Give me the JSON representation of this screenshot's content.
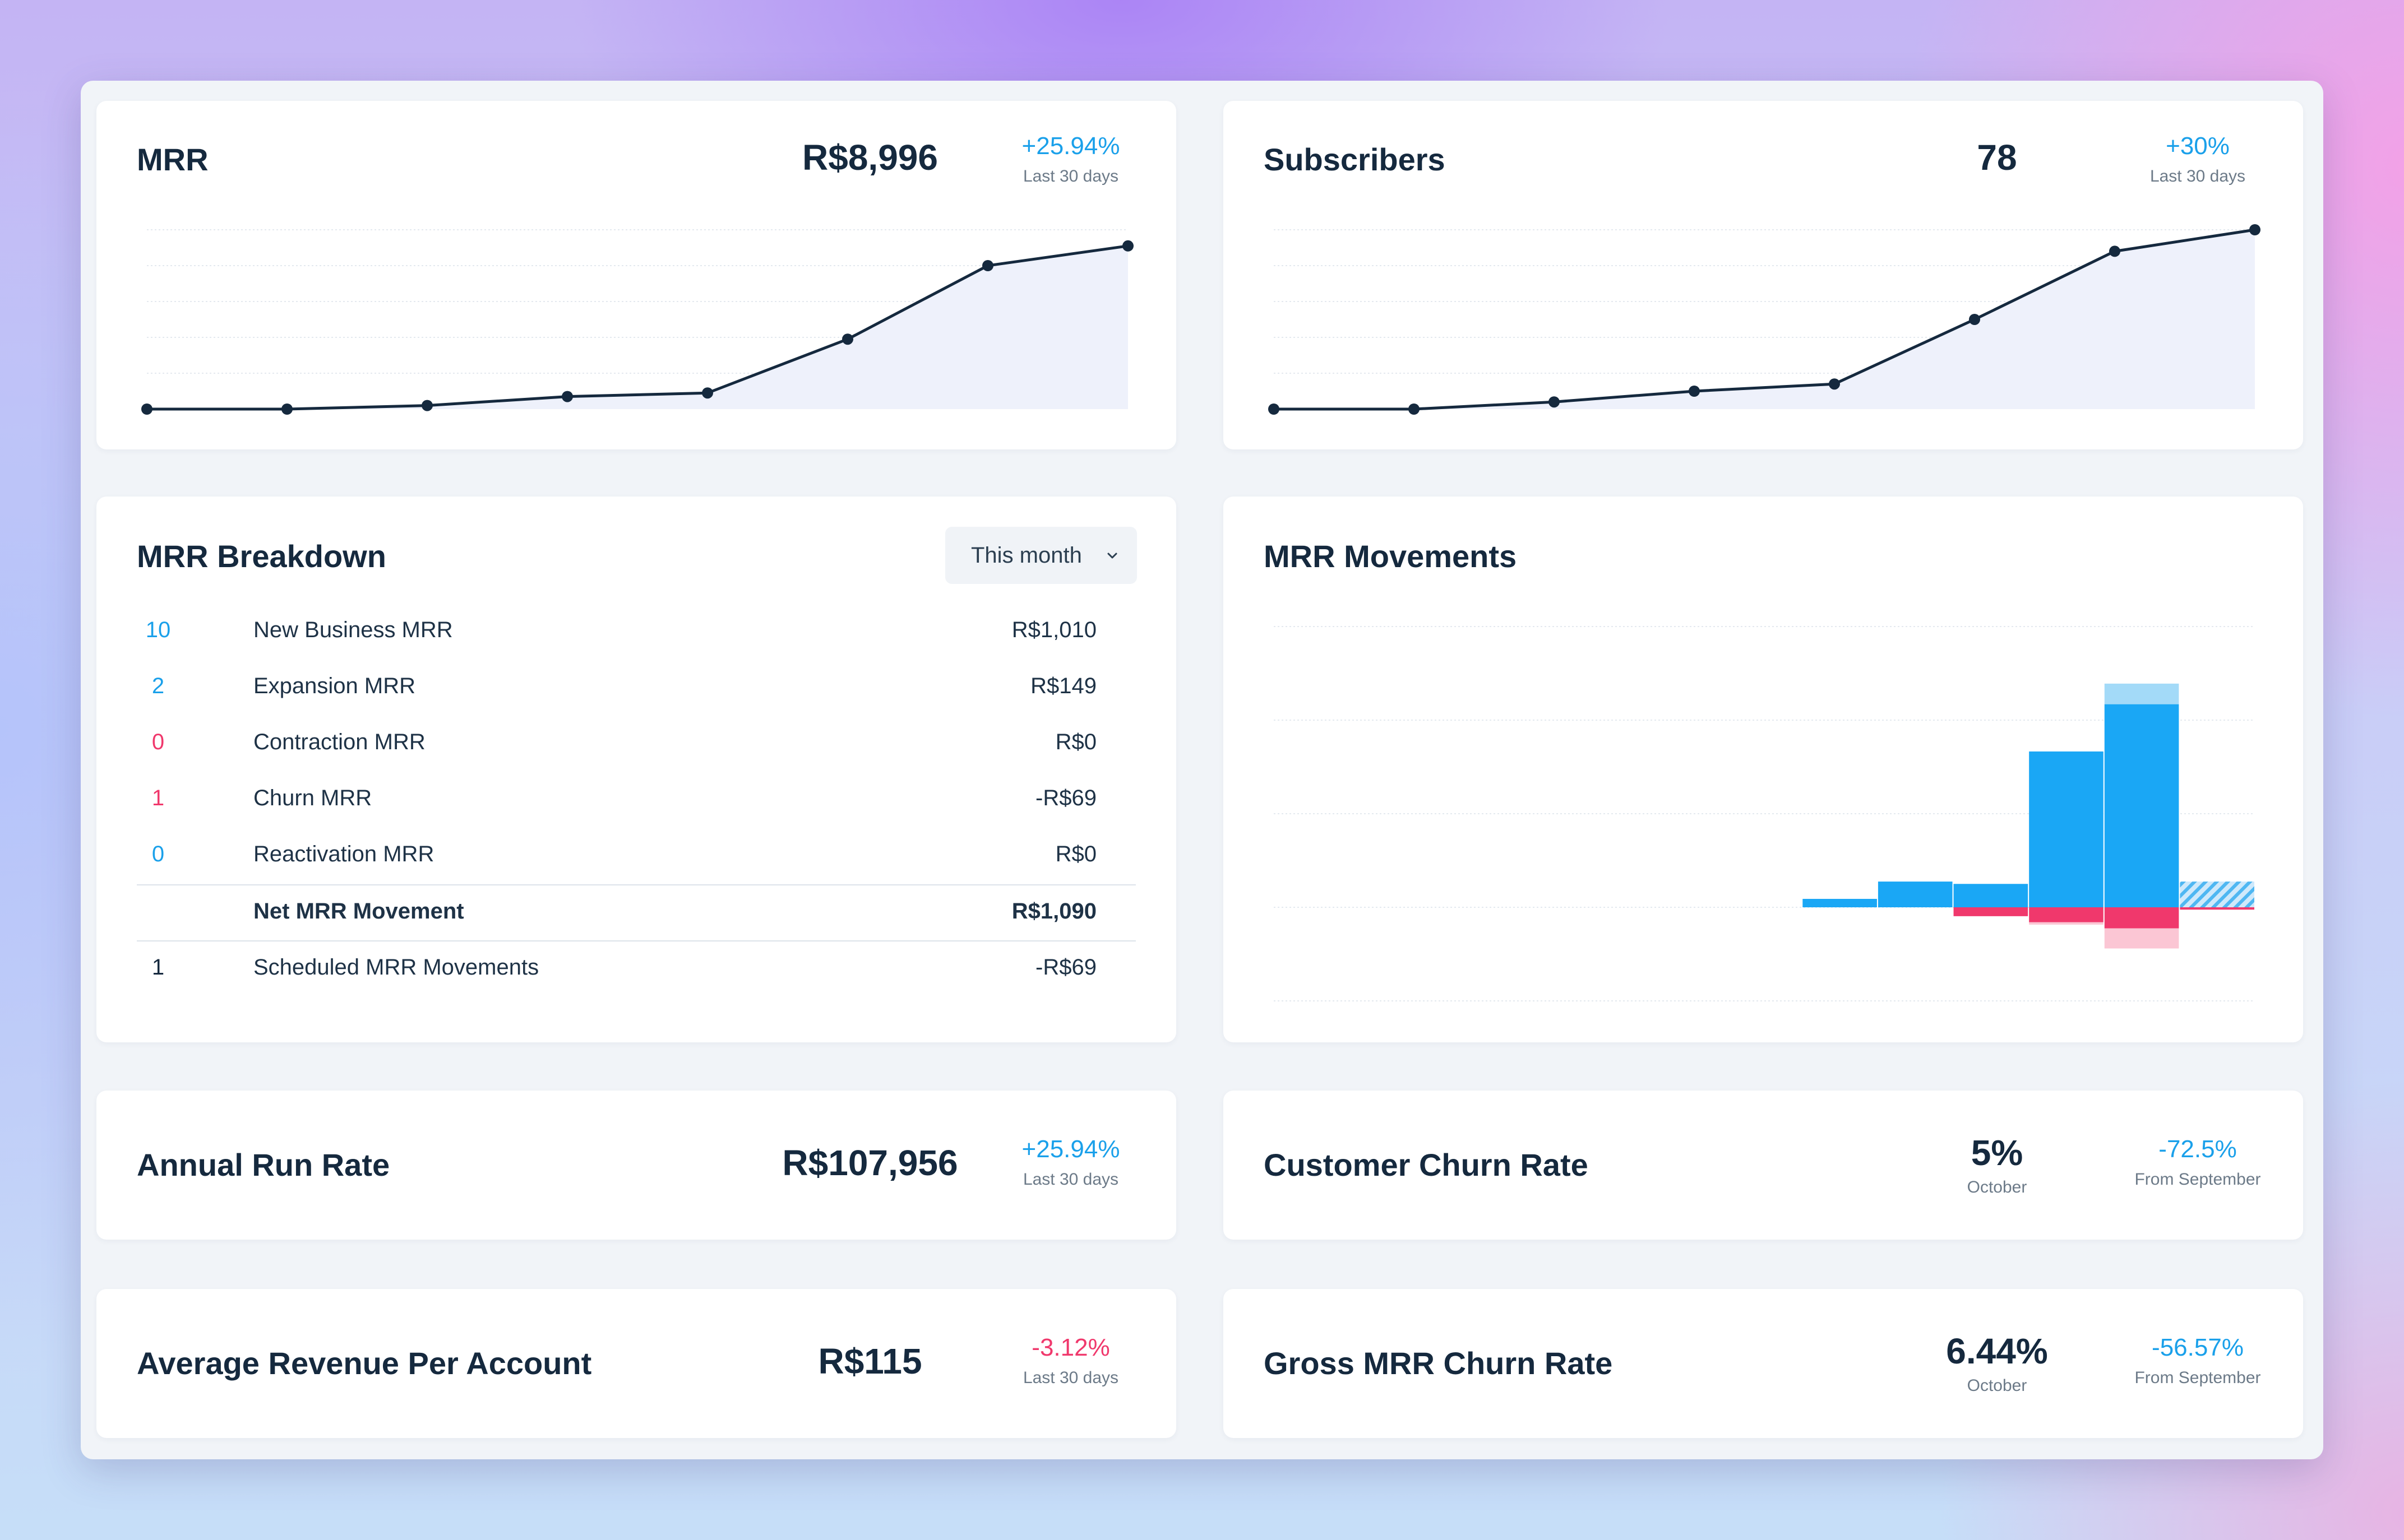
{
  "mrr": {
    "title": "MRR",
    "value": "R$8,996",
    "delta": "+25.94%",
    "delta_sub": "Last 30 days",
    "line_color": "#15293e",
    "fill_color": "#eef1fb"
  },
  "subscribers": {
    "title": "Subscribers",
    "value": "78",
    "delta": "+30%",
    "delta_sub": "Last 30 days"
  },
  "breakdown": {
    "title": "MRR Breakdown",
    "period": "This month",
    "rows": [
      {
        "count": "10",
        "label": "New Business MRR",
        "amount": "R$1,010",
        "count_color": "#1aa0ea"
      },
      {
        "count": "2",
        "label": "Expansion MRR",
        "amount": "R$149",
        "count_color": "#1aa0ea"
      },
      {
        "count": "0",
        "label": "Contraction MRR",
        "amount": "R$0",
        "count_color": "#f0386c"
      },
      {
        "count": "1",
        "label": "Churn MRR",
        "amount": "-R$69",
        "count_color": "#f0386c"
      },
      {
        "count": "0",
        "label": "Reactivation MRR",
        "amount": "R$0",
        "count_color": "#1aa0ea"
      }
    ],
    "net": {
      "label": "Net MRR Movement",
      "amount": "R$1,090"
    },
    "scheduled": {
      "count": "1",
      "label": "Scheduled MRR Movements",
      "amount": "-R$69"
    }
  },
  "movements": {
    "title": "MRR Movements",
    "colors": {
      "positive": "#1aa7f5",
      "positive_light": "#a3daf8",
      "negative": "#f0386c",
      "negative_light": "#fbc6d4"
    }
  },
  "annual_run_rate": {
    "title": "Annual Run Rate",
    "value": "R$107,956",
    "delta": "+25.94%",
    "delta_sub": "Last 30 days"
  },
  "customer_churn": {
    "title": "Customer Churn Rate",
    "value": "5%",
    "value_sub": "October",
    "delta": "-72.5%",
    "delta_sub": "From September"
  },
  "arpa": {
    "title": "Average Revenue Per Account",
    "value": "R$115",
    "delta": "-3.12%",
    "delta_sub": "Last 30 days"
  },
  "gross_churn": {
    "title": "Gross MRR Churn Rate",
    "value": "6.44%",
    "value_sub": "October",
    "delta": "-56.57%",
    "delta_sub": "From September"
  },
  "chart_data": [
    {
      "type": "line",
      "series": [
        {
          "values": [
            0,
            0,
            0.02,
            0.07,
            0.09,
            0.39,
            0.8,
            0.91
          ]
        }
      ],
      "ylim": [
        0,
        1
      ],
      "grid": true
    },
    {
      "type": "line",
      "series": [
        {
          "values": [
            0,
            0,
            0.04,
            0.1,
            0.14,
            0.5,
            0.88,
            1.0
          ]
        }
      ],
      "ylim": [
        0,
        1
      ],
      "grid": true
    },
    {
      "type": "bar",
      "stacked": true,
      "categories_count": 13,
      "series": [
        {
          "values": [
            0,
            0,
            0,
            0,
            0,
            0,
            0,
            0.18,
            0.55,
            0.5,
            3.33,
            4.34,
            0
          ]
        },
        {
          "values": [
            0,
            0,
            0,
            0,
            0,
            0,
            0,
            0,
            0,
            0,
            0,
            0.44,
            0.55
          ]
        },
        {
          "values": [
            0,
            0,
            0,
            0,
            0,
            0,
            0,
            0,
            0,
            -0.19,
            -0.32,
            -0.45,
            -0.05
          ]
        },
        {
          "values": [
            0,
            0,
            0,
            0,
            0,
            0,
            0,
            0,
            0,
            0,
            -0.05,
            -0.43,
            0
          ]
        }
      ],
      "ylim": [
        -2,
        6
      ],
      "grid": true
    }
  ]
}
